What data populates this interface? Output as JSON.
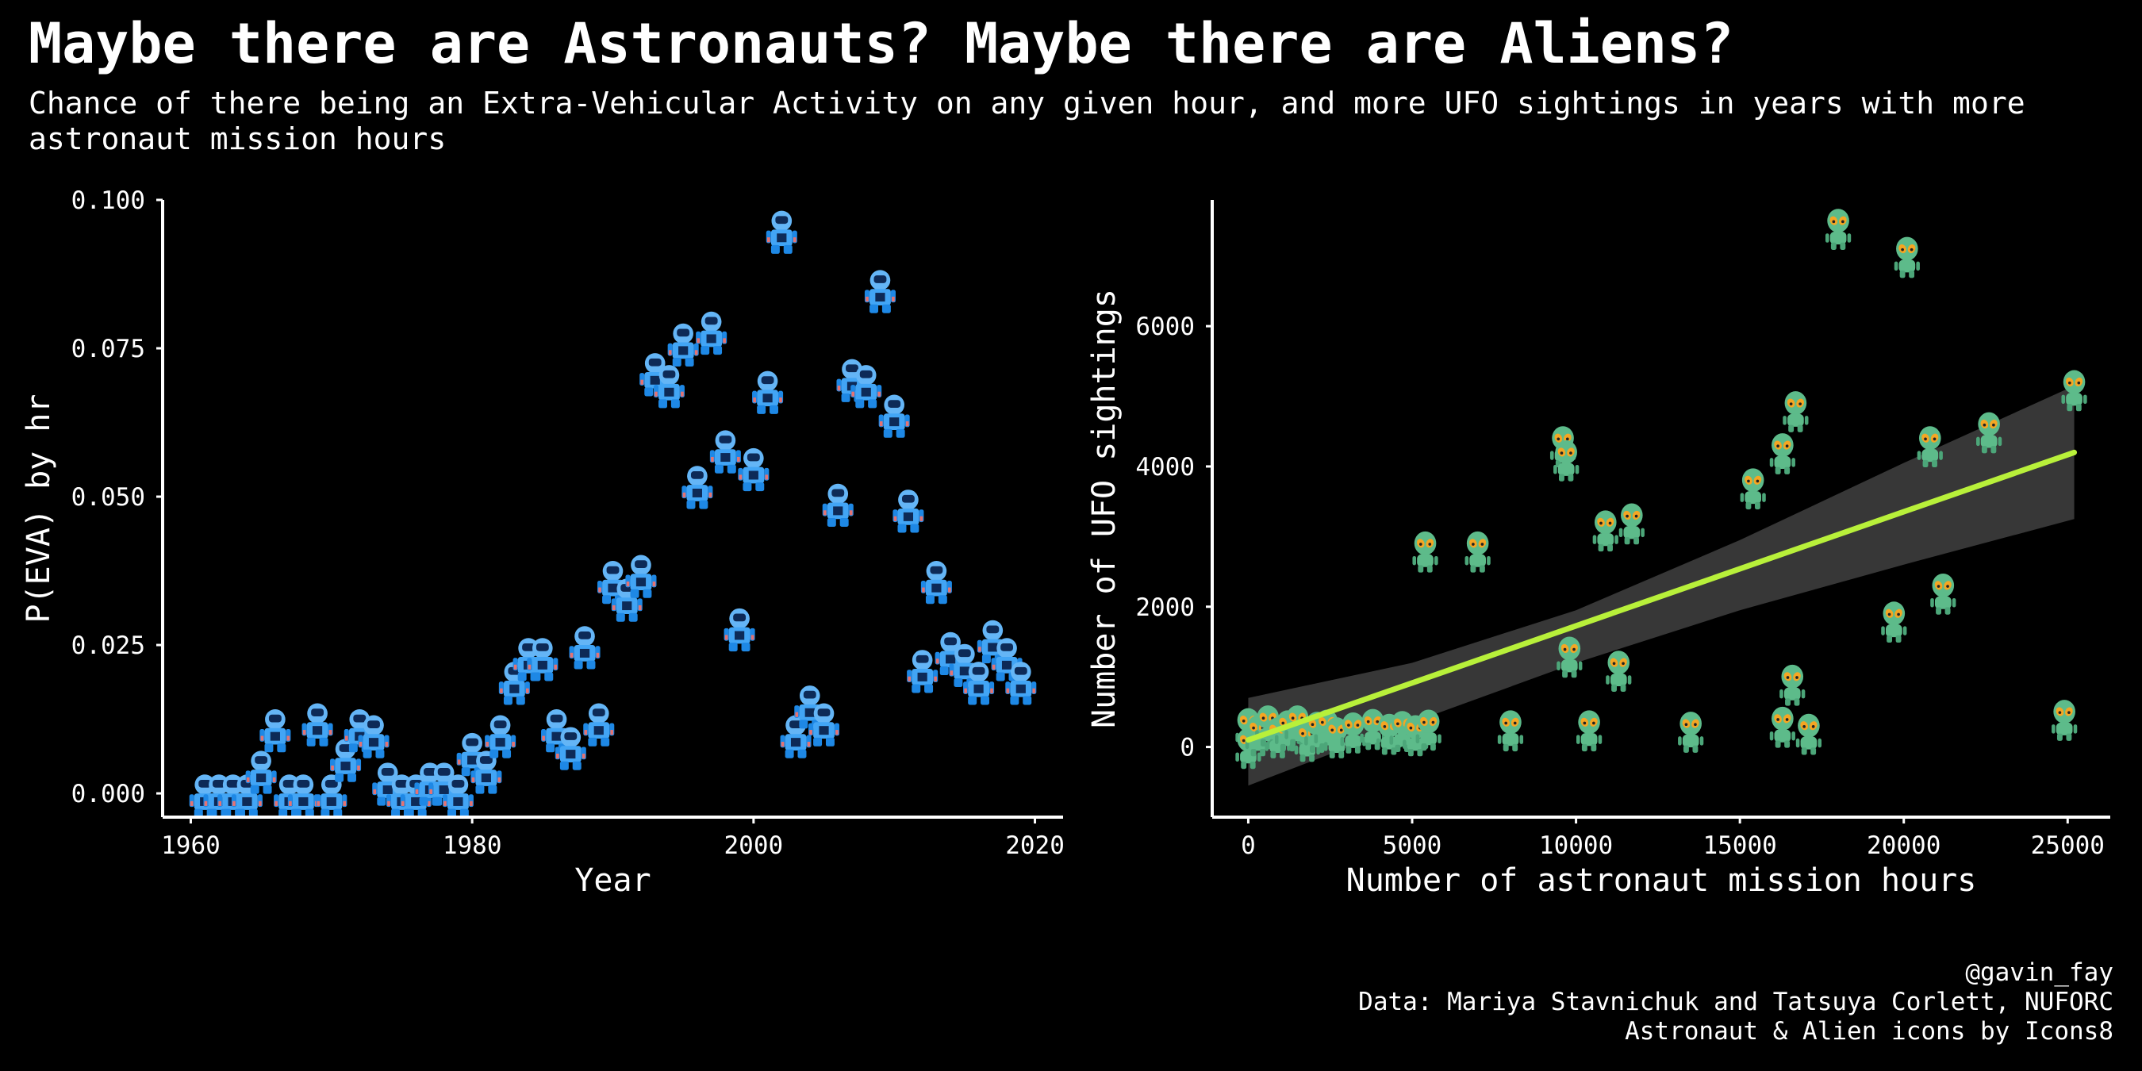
{
  "title": "Maybe there are Astronauts? Maybe there are Aliens?",
  "subtitle": "Chance of there being an Extra-Vehicular Activity on any given hour, and more UFO sightings in years with more astronaut mission hours",
  "credits": {
    "handle": "@gavin_fay",
    "data_source": "Data: Mariya Stavnichuk and Tatsuya Corlett, NUFORC",
    "icons": "Astronaut & Alien icons by Icons8"
  },
  "colors": {
    "background": "#000000",
    "astronaut_suit": "#42a5f5",
    "alien_skin": "#5dbb8a",
    "alien_eyes": "#f5a623",
    "trend_line": "#b8f03a",
    "confidence_band": "#4a4a4a"
  },
  "chart_data": [
    {
      "type": "scatter",
      "marker": "astronaut-icon",
      "xlabel": "Year",
      "ylabel": "P(EVA) by hr",
      "xlim": [
        1958,
        2022
      ],
      "ylim": [
        -0.004,
        0.1
      ],
      "xticks": [
        1960,
        1980,
        2000,
        2020
      ],
      "yticks": [
        0.0,
        0.025,
        0.05,
        0.075,
        0.1
      ],
      "ytick_labels": [
        "0.000",
        "0.025",
        "0.050",
        "0.075",
        "0.100"
      ],
      "grid": false,
      "points": [
        {
          "x": 1961,
          "y": 0.0
        },
        {
          "x": 1962,
          "y": 0.0
        },
        {
          "x": 1963,
          "y": 0.0
        },
        {
          "x": 1964,
          "y": 0.0
        },
        {
          "x": 1965,
          "y": 0.004
        },
        {
          "x": 1966,
          "y": 0.011
        },
        {
          "x": 1967,
          "y": 0.0
        },
        {
          "x": 1968,
          "y": 0.0
        },
        {
          "x": 1969,
          "y": 0.012
        },
        {
          "x": 1970,
          "y": 0.0
        },
        {
          "x": 1971,
          "y": 0.006
        },
        {
          "x": 1972,
          "y": 0.011
        },
        {
          "x": 1973,
          "y": 0.01
        },
        {
          "x": 1974,
          "y": 0.002
        },
        {
          "x": 1975,
          "y": 0.0
        },
        {
          "x": 1976,
          "y": 0.0
        },
        {
          "x": 1977,
          "y": 0.002
        },
        {
          "x": 1978,
          "y": 0.002
        },
        {
          "x": 1979,
          "y": 0.0
        },
        {
          "x": 1980,
          "y": 0.007
        },
        {
          "x": 1981,
          "y": 0.004
        },
        {
          "x": 1982,
          "y": 0.01
        },
        {
          "x": 1983,
          "y": 0.019
        },
        {
          "x": 1984,
          "y": 0.023
        },
        {
          "x": 1985,
          "y": 0.023
        },
        {
          "x": 1986,
          "y": 0.011
        },
        {
          "x": 1987,
          "y": 0.008
        },
        {
          "x": 1988,
          "y": 0.025
        },
        {
          "x": 1989,
          "y": 0.012
        },
        {
          "x": 1990,
          "y": 0.036
        },
        {
          "x": 1991,
          "y": 0.033
        },
        {
          "x": 1992,
          "y": 0.037
        },
        {
          "x": 1993,
          "y": 0.071
        },
        {
          "x": 1994,
          "y": 0.069
        },
        {
          "x": 1995,
          "y": 0.076
        },
        {
          "x": 1996,
          "y": 0.052
        },
        {
          "x": 1997,
          "y": 0.078
        },
        {
          "x": 1998,
          "y": 0.058
        },
        {
          "x": 1999,
          "y": 0.028
        },
        {
          "x": 2000,
          "y": 0.055
        },
        {
          "x": 2001,
          "y": 0.068
        },
        {
          "x": 2002,
          "y": 0.095
        },
        {
          "x": 2003,
          "y": 0.01
        },
        {
          "x": 2004,
          "y": 0.015
        },
        {
          "x": 2005,
          "y": 0.012
        },
        {
          "x": 2006,
          "y": 0.049
        },
        {
          "x": 2007,
          "y": 0.07
        },
        {
          "x": 2008,
          "y": 0.069
        },
        {
          "x": 2009,
          "y": 0.085
        },
        {
          "x": 2010,
          "y": 0.064
        },
        {
          "x": 2011,
          "y": 0.048
        },
        {
          "x": 2012,
          "y": 0.021
        },
        {
          "x": 2013,
          "y": 0.036
        },
        {
          "x": 2014,
          "y": 0.024
        },
        {
          "x": 2015,
          "y": 0.022
        },
        {
          "x": 2016,
          "y": 0.019
        },
        {
          "x": 2017,
          "y": 0.026
        },
        {
          "x": 2018,
          "y": 0.023
        },
        {
          "x": 2019,
          "y": 0.019
        }
      ]
    },
    {
      "type": "scatter",
      "marker": "alien-icon",
      "xlabel": "Number of astronaut mission hours",
      "ylabel": "Number of UFO sightings",
      "xlim": [
        -1100,
        26300
      ],
      "ylim": [
        -1000,
        7800
      ],
      "xticks": [
        0,
        5000,
        10000,
        15000,
        20000,
        25000
      ],
      "yticks": [
        0,
        2000,
        4000,
        6000
      ],
      "grid": false,
      "points": [
        {
          "x": 0,
          "y": 280
        },
        {
          "x": 0,
          "y": 0
        },
        {
          "x": 300,
          "y": 180
        },
        {
          "x": 600,
          "y": 320
        },
        {
          "x": 900,
          "y": 150
        },
        {
          "x": 1200,
          "y": 250
        },
        {
          "x": 1500,
          "y": 320
        },
        {
          "x": 1800,
          "y": 100
        },
        {
          "x": 2100,
          "y": 230
        },
        {
          "x": 2400,
          "y": 260
        },
        {
          "x": 2700,
          "y": 150
        },
        {
          "x": 3200,
          "y": 220
        },
        {
          "x": 3800,
          "y": 270
        },
        {
          "x": 4300,
          "y": 200
        },
        {
          "x": 4700,
          "y": 240
        },
        {
          "x": 5100,
          "y": 180
        },
        {
          "x": 5500,
          "y": 260
        },
        {
          "x": 5400,
          "y": 2800
        },
        {
          "x": 7000,
          "y": 2800
        },
        {
          "x": 8000,
          "y": 250
        },
        {
          "x": 9600,
          "y": 4300
        },
        {
          "x": 9700,
          "y": 4100
        },
        {
          "x": 9800,
          "y": 1300
        },
        {
          "x": 10400,
          "y": 250
        },
        {
          "x": 10900,
          "y": 3100
        },
        {
          "x": 11300,
          "y": 1100
        },
        {
          "x": 11700,
          "y": 3200
        },
        {
          "x": 13500,
          "y": 230
        },
        {
          "x": 15400,
          "y": 3700
        },
        {
          "x": 16300,
          "y": 4200
        },
        {
          "x": 16300,
          "y": 300
        },
        {
          "x": 16600,
          "y": 900
        },
        {
          "x": 16700,
          "y": 4800
        },
        {
          "x": 17100,
          "y": 200
        },
        {
          "x": 18000,
          "y": 7400
        },
        {
          "x": 19700,
          "y": 1800
        },
        {
          "x": 20100,
          "y": 7000
        },
        {
          "x": 20800,
          "y": 4300
        },
        {
          "x": 21200,
          "y": 2200
        },
        {
          "x": 22600,
          "y": 4500
        },
        {
          "x": 24900,
          "y": 400
        },
        {
          "x": 25200,
          "y": 5100
        }
      ],
      "trend": {
        "x": [
          0,
          25200
        ],
        "y": [
          100,
          4200
        ]
      },
      "confidence_band": {
        "x": [
          0,
          5000,
          10000,
          15000,
          20000,
          25200
        ],
        "lower": [
          -550,
          350,
          1200,
          1950,
          2600,
          3250
        ],
        "upper": [
          700,
          1200,
          1950,
          2950,
          4050,
          5150
        ]
      }
    }
  ]
}
